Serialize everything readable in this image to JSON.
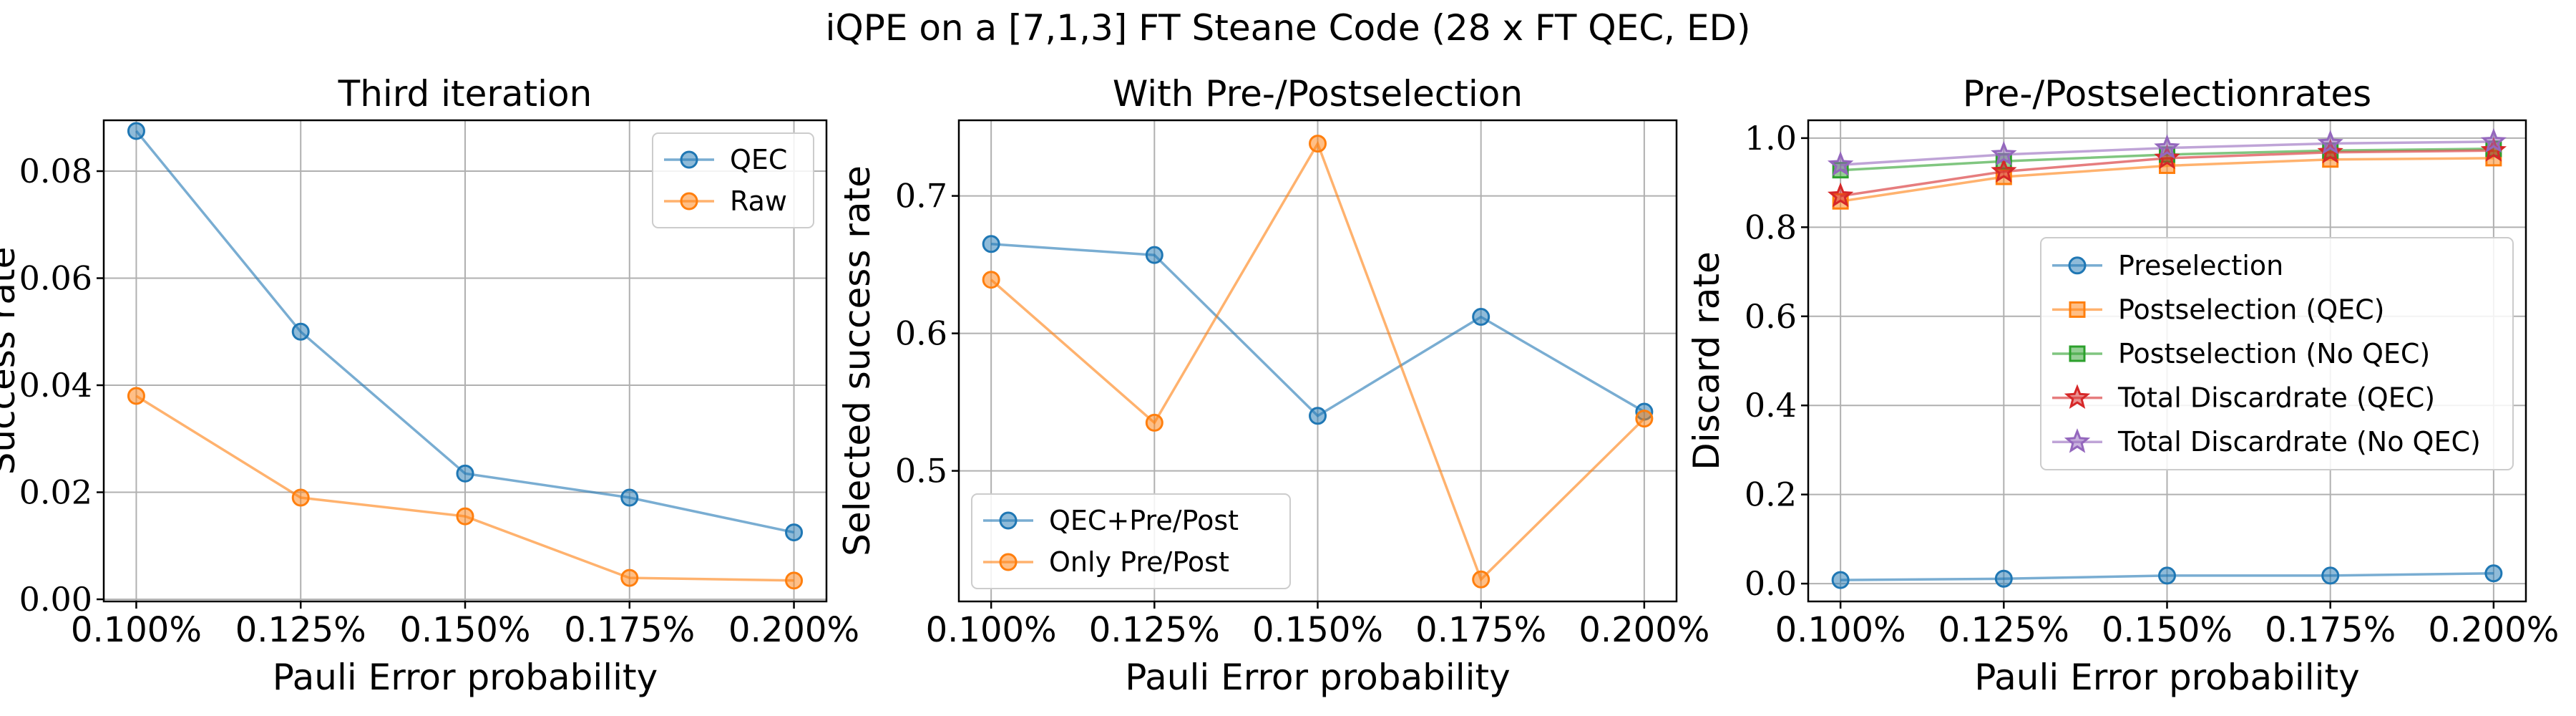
{
  "figure": {
    "title": "iQPE on a [7,1,3] FT Steane Code (28 x FT QEC, ED)"
  },
  "colors": {
    "blue": "#1f77b4",
    "orange": "#ff7f0e",
    "green": "#2ca02c",
    "red": "#d62728",
    "purple": "#9467bd",
    "grid": "#b0b0b0"
  },
  "chart_data": [
    {
      "type": "line",
      "title": "Third iteration",
      "xlabel": "Pauli Error probability",
      "ylabel": "Success rate",
      "categories": [
        "0.100%",
        "0.125%",
        "0.150%",
        "0.175%",
        "0.200%"
      ],
      "ylim": [
        -0.0004,
        0.0895
      ],
      "yticks": [
        0.0,
        0.02,
        0.04,
        0.06,
        0.08
      ],
      "ytick_labels": [
        "0.00",
        "0.02",
        "0.04",
        "0.06",
        "0.08"
      ],
      "grid": true,
      "legend_position": "top-right",
      "series": [
        {
          "name": "QEC",
          "color": "blue",
          "marker": "circle",
          "values": [
            0.0875,
            0.05,
            0.0235,
            0.019,
            0.0125
          ]
        },
        {
          "name": "Raw",
          "color": "orange",
          "marker": "circle",
          "values": [
            0.038,
            0.019,
            0.0155,
            0.004,
            0.0035
          ]
        }
      ]
    },
    {
      "type": "line",
      "title": "With Pre-/Postselection",
      "xlabel": "Pauli Error probability",
      "ylabel": "Selected success rate",
      "categories": [
        "0.100%",
        "0.125%",
        "0.150%",
        "0.175%",
        "0.200%"
      ],
      "ylim": [
        0.405,
        0.755
      ],
      "yticks": [
        0.5,
        0.6,
        0.7
      ],
      "ytick_labels": [
        "0.5",
        "0.6",
        "0.7"
      ],
      "grid": true,
      "legend_position": "bottom-left",
      "series": [
        {
          "name": "QEC+Pre/Post",
          "color": "blue",
          "marker": "circle",
          "values": [
            0.665,
            0.657,
            0.54,
            0.612,
            0.543
          ]
        },
        {
          "name": "Only Pre/Post",
          "color": "orange",
          "marker": "circle",
          "values": [
            0.639,
            0.535,
            0.738,
            0.421,
            0.538
          ]
        }
      ]
    },
    {
      "type": "line",
      "title": "Pre-/Postselectionrates",
      "xlabel": "Pauli Error probability",
      "ylabel": "Discard rate",
      "categories": [
        "0.100%",
        "0.125%",
        "0.150%",
        "0.175%",
        "0.200%"
      ],
      "ylim": [
        -0.04,
        1.04
      ],
      "yticks": [
        0.0,
        0.2,
        0.4,
        0.6,
        0.8,
        1.0
      ],
      "ytick_labels": [
        "0.0",
        "0.2",
        "0.4",
        "0.6",
        "0.8",
        "1.0"
      ],
      "grid": true,
      "legend_position": "center-right",
      "series": [
        {
          "name": "Preselection",
          "color": "blue",
          "marker": "circle",
          "values": [
            0.008,
            0.011,
            0.018,
            0.018,
            0.023
          ]
        },
        {
          "name": "Postselection (QEC)",
          "color": "orange",
          "marker": "square",
          "values": [
            0.858,
            0.913,
            0.938,
            0.952,
            0.955
          ]
        },
        {
          "name": "Postselection (No QEC)",
          "color": "green",
          "marker": "square",
          "values": [
            0.928,
            0.948,
            0.963,
            0.972,
            0.976
          ]
        },
        {
          "name": "Total Discardrate (QEC)",
          "color": "red",
          "marker": "star",
          "values": [
            0.87,
            0.925,
            0.955,
            0.968,
            0.972
          ]
        },
        {
          "name": "Total Discardrate (No QEC)",
          "color": "purple",
          "marker": "star",
          "values": [
            0.94,
            0.963,
            0.978,
            0.988,
            0.992
          ]
        }
      ]
    }
  ]
}
